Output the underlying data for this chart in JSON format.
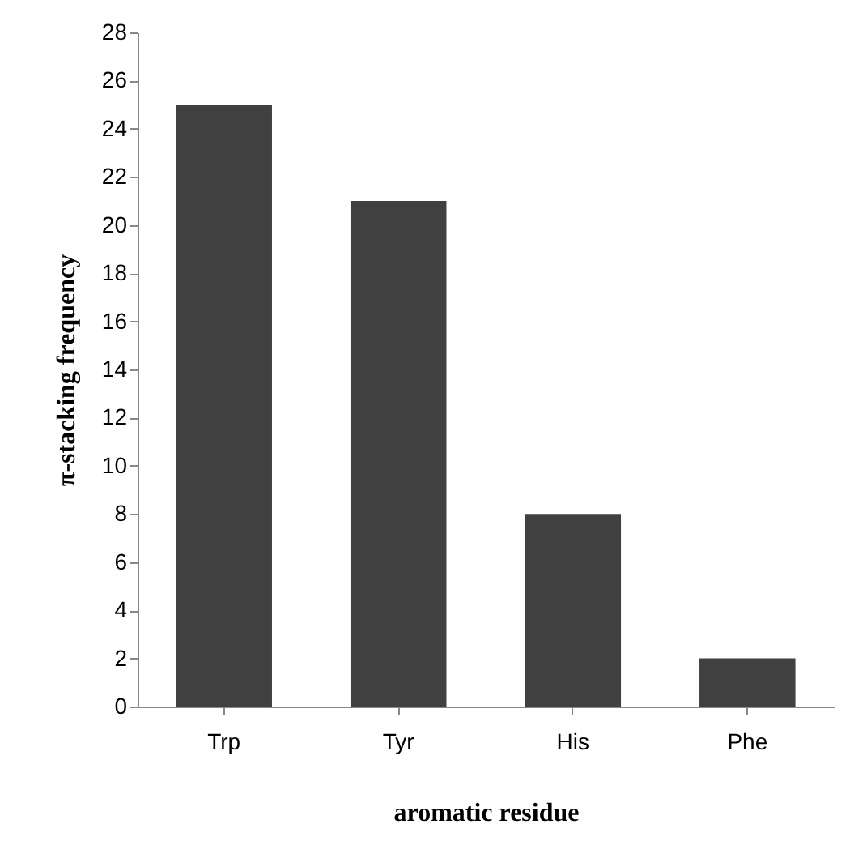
{
  "chart_data": {
    "type": "bar",
    "xlabel": "aromatic residue",
    "ylabel": "π-stacking frequency",
    "categories": [
      "Trp",
      "Tyr",
      "His",
      "Phe"
    ],
    "values": [
      25,
      21,
      8,
      2
    ],
    "color": "#404040",
    "ylim": [
      0,
      28
    ],
    "yticks": [
      0,
      2,
      4,
      6,
      8,
      10,
      12,
      14,
      16,
      18,
      20,
      22,
      24,
      26,
      28
    ]
  }
}
